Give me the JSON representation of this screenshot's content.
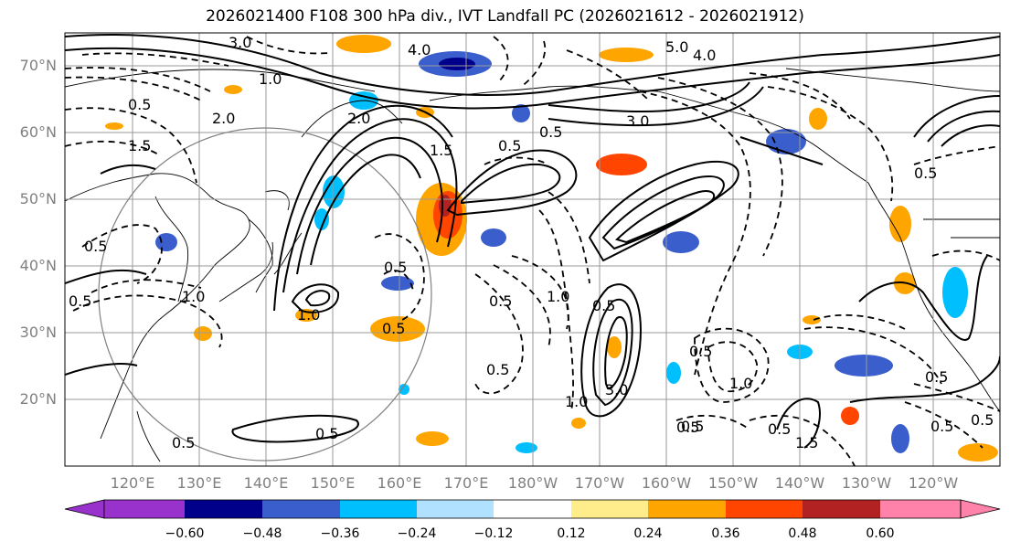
{
  "title": "2026021400 F108 300 hPa div., IVT Landfall PC (2026021612 - 2026021912)",
  "map": {
    "lat_labels": [
      "70°N",
      "60°N",
      "50°N",
      "40°N",
      "30°N",
      "20°N"
    ],
    "lon_labels": [
      "120°E",
      "130°E",
      "140°E",
      "150°E",
      "160°E",
      "170°E",
      "180°W",
      "170°W",
      "160°W",
      "150°W",
      "140°W",
      "130°W",
      "120°W"
    ]
  },
  "colorbar": {
    "ticks": [
      "−0.60",
      "−0.48",
      "−0.36",
      "−0.24",
      "−0.12",
      "0.12",
      "0.24",
      "0.36",
      "0.48",
      "0.60"
    ],
    "colors": [
      "#9932cc",
      "#00008b",
      "#3a5fcd",
      "#00bfff",
      "#b0e2ff",
      "#ffffff",
      "#ffec8b",
      "#ffa500",
      "#ff4500",
      "#b22222",
      "#ff82ab"
    ]
  },
  "contour_labels": [
    "3.0",
    "4.0",
    "5.0",
    "4.0",
    "3.0",
    "2.0",
    "1.0",
    "0.5",
    "1.5",
    "0.5",
    "0.5",
    "3.0",
    "1.0",
    "0.5",
    "0.5",
    "1.0",
    "1.0",
    "0.5",
    "0.5",
    "0.5",
    "0.5",
    "1.0",
    "0.5",
    "1.5",
    "0.5",
    "1.0",
    "2.0",
    "0.5",
    "0.5",
    "0.5",
    "0.5",
    "0.5",
    "1.5",
    "0.5",
    "0.5",
    "0.5",
    "0.5"
  ]
}
